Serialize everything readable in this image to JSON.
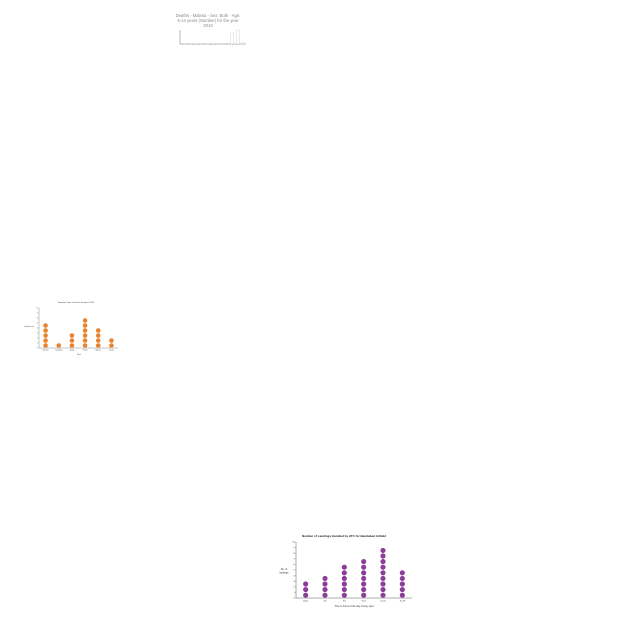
{
  "chart_data": [
    {
      "type": "bar",
      "title_lines": [
        "Deaths - Malaria - Sex: Both - Age:",
        "5-14 years (Number) for the year",
        "2019"
      ],
      "categories": [
        "",
        "",
        "",
        "",
        "",
        "",
        "",
        "",
        "",
        "",
        "",
        ""
      ],
      "values": [
        0,
        0,
        0,
        0,
        0,
        0,
        0,
        0,
        0,
        0.4,
        0.5,
        0.05
      ],
      "xlabel": "",
      "ylabel": "",
      "colors": {
        "bar_fill": "#ffffff",
        "bar_stroke": "#bbbbbb",
        "axis": "#555555",
        "text": "#888888"
      }
    },
    {
      "type": "dot",
      "title": "Hospital visits of Sam's family in 2014",
      "categories": [
        "Nanashi",
        "Tachibana",
        "Uchida",
        "Sasaki",
        "Nakano",
        "Tanaka"
      ],
      "values": [
        5,
        1,
        3,
        6,
        4,
        2
      ],
      "y_ticks": [
        "0",
        "1",
        "2",
        "3",
        "4",
        "5",
        "6",
        "7",
        "8"
      ],
      "xlabel": "Name",
      "ylabel": "Hospital visits",
      "colors": {
        "dot": "#e8822e",
        "axis": "#444444",
        "text": "#444444"
      }
    },
    {
      "type": "dot",
      "title": "Number of Landings Handled by ATC for Bandabad Airfield",
      "categories": [
        "00-11",
        "3-6",
        "6-9",
        "9-12",
        "12-15",
        "15-18"
      ],
      "values": [
        3,
        4,
        6,
        7,
        9,
        5
      ],
      "y_ticks": [
        "0",
        "1",
        "2",
        "3",
        "4",
        "5",
        "6",
        "7",
        "8",
        "9",
        "10"
      ],
      "xlabel": "Time In hours of the day of busy spot",
      "ylabel_lines": [
        "No. of",
        "landings"
      ],
      "colors": {
        "dot": "#8c3d99",
        "axis": "#333333",
        "text": "#222222"
      }
    }
  ]
}
